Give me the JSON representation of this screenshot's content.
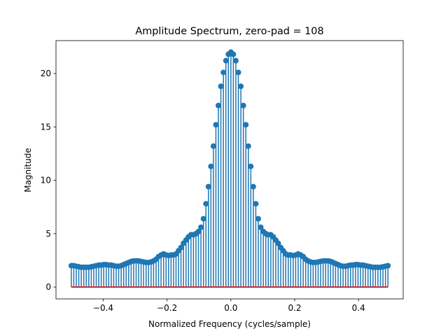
{
  "chart_data": {
    "type": "stem",
    "title": "Amplitude Spectrum, zero-pad = 108",
    "xlabel": "Normalized Frequency (cycles/sample)",
    "ylabel": "Magnitude",
    "color": "#1f77b4",
    "baseline_color": "#d62728",
    "x": [
      -0.5,
      -0.4922,
      -0.4844,
      -0.4766,
      -0.4688,
      -0.4609,
      -0.4531,
      -0.4453,
      -0.4375,
      -0.4297,
      -0.4219,
      -0.4141,
      -0.4063,
      -0.3984,
      -0.3906,
      -0.3828,
      -0.375,
      -0.3672,
      -0.3594,
      -0.3516,
      -0.3438,
      -0.3359,
      -0.3281,
      -0.3203,
      -0.3125,
      -0.3047,
      -0.2969,
      -0.2891,
      -0.2813,
      -0.2734,
      -0.2656,
      -0.2578,
      -0.25,
      -0.2422,
      -0.2344,
      -0.2266,
      -0.2188,
      -0.2109,
      -0.2031,
      -0.1953,
      -0.1875,
      -0.1797,
      -0.1719,
      -0.1641,
      -0.1563,
      -0.1484,
      -0.1406,
      -0.1328,
      -0.125,
      -0.1172,
      -0.1094,
      -0.1016,
      -0.0938,
      -0.0859,
      -0.0781,
      -0.0703,
      -0.0625,
      -0.0547,
      -0.0469,
      -0.0391,
      -0.0313,
      -0.0234,
      -0.0156,
      -0.0078,
      0,
      0.0078,
      0.0156,
      0.0234,
      0.0313,
      0.0391,
      0.0469,
      0.0547,
      0.0625,
      0.0703,
      0.0781,
      0.0859,
      0.0938,
      0.1016,
      0.1094,
      0.1172,
      0.125,
      0.1328,
      0.1406,
      0.1484,
      0.1563,
      0.1641,
      0.1719,
      0.1797,
      0.1875,
      0.1953,
      0.2031,
      0.2109,
      0.2188,
      0.2266,
      0.2344,
      0.2422,
      0.25,
      0.2578,
      0.2656,
      0.2734,
      0.2813,
      0.2891,
      0.2969,
      0.3047,
      0.3125,
      0.3203,
      0.3281,
      0.3359,
      0.3438,
      0.3516,
      0.3594,
      0.3672,
      0.375,
      0.3828,
      0.3906,
      0.3984,
      0.4063,
      0.4141,
      0.4219,
      0.4297,
      0.4375,
      0.4453,
      0.4531,
      0.4609,
      0.4688,
      0.4766,
      0.4844,
      0.4922
    ],
    "values": [
      2.0,
      2.0,
      1.95,
      1.9,
      1.85,
      1.85,
      1.85,
      1.85,
      1.9,
      1.95,
      2.0,
      2.05,
      2.05,
      2.1,
      2.1,
      2.05,
      2.05,
      2.0,
      1.95,
      1.95,
      2.0,
      2.1,
      2.2,
      2.3,
      2.4,
      2.45,
      2.45,
      2.45,
      2.4,
      2.35,
      2.3,
      2.3,
      2.35,
      2.45,
      2.6,
      2.85,
      3.0,
      3.1,
      3.0,
      2.95,
      3.0,
      3.0,
      3.1,
      3.4,
      3.7,
      4.1,
      4.4,
      4.7,
      4.9,
      4.9,
      5.0,
      5.2,
      5.6,
      6.4,
      7.8,
      9.4,
      11.3,
      13.2,
      15.2,
      17.0,
      18.8,
      20.1,
      21.2,
      21.8,
      22.0,
      21.8,
      21.2,
      20.1,
      18.8,
      17.0,
      15.2,
      13.2,
      11.3,
      9.4,
      7.8,
      6.4,
      5.6,
      5.2,
      5.0,
      4.9,
      4.9,
      4.7,
      4.4,
      4.1,
      3.7,
      3.4,
      3.1,
      3.0,
      3.0,
      2.95,
      3.0,
      3.1,
      3.0,
      2.85,
      2.6,
      2.45,
      2.35,
      2.3,
      2.3,
      2.35,
      2.4,
      2.45,
      2.45,
      2.45,
      2.4,
      2.3,
      2.2,
      2.1,
      2.0,
      1.95,
      1.95,
      2.0,
      2.05,
      2.05,
      2.1,
      2.1,
      2.05,
      2.05,
      2.0,
      1.95,
      1.9,
      1.85,
      1.85,
      1.85,
      1.85,
      1.9,
      1.95,
      2.0
    ],
    "xlim": [
      -0.548,
      0.54
    ],
    "ylim": [
      -1.11,
      23.08
    ],
    "xticks": [
      {
        "value": -0.4,
        "label": "−0.4"
      },
      {
        "value": -0.2,
        "label": "−0.2"
      },
      {
        "value": 0,
        "label": "0.0"
      },
      {
        "value": 0.2,
        "label": "0.2"
      },
      {
        "value": 0.4,
        "label": "0.4"
      }
    ],
    "yticks": [
      0,
      5,
      10,
      15,
      20
    ]
  }
}
